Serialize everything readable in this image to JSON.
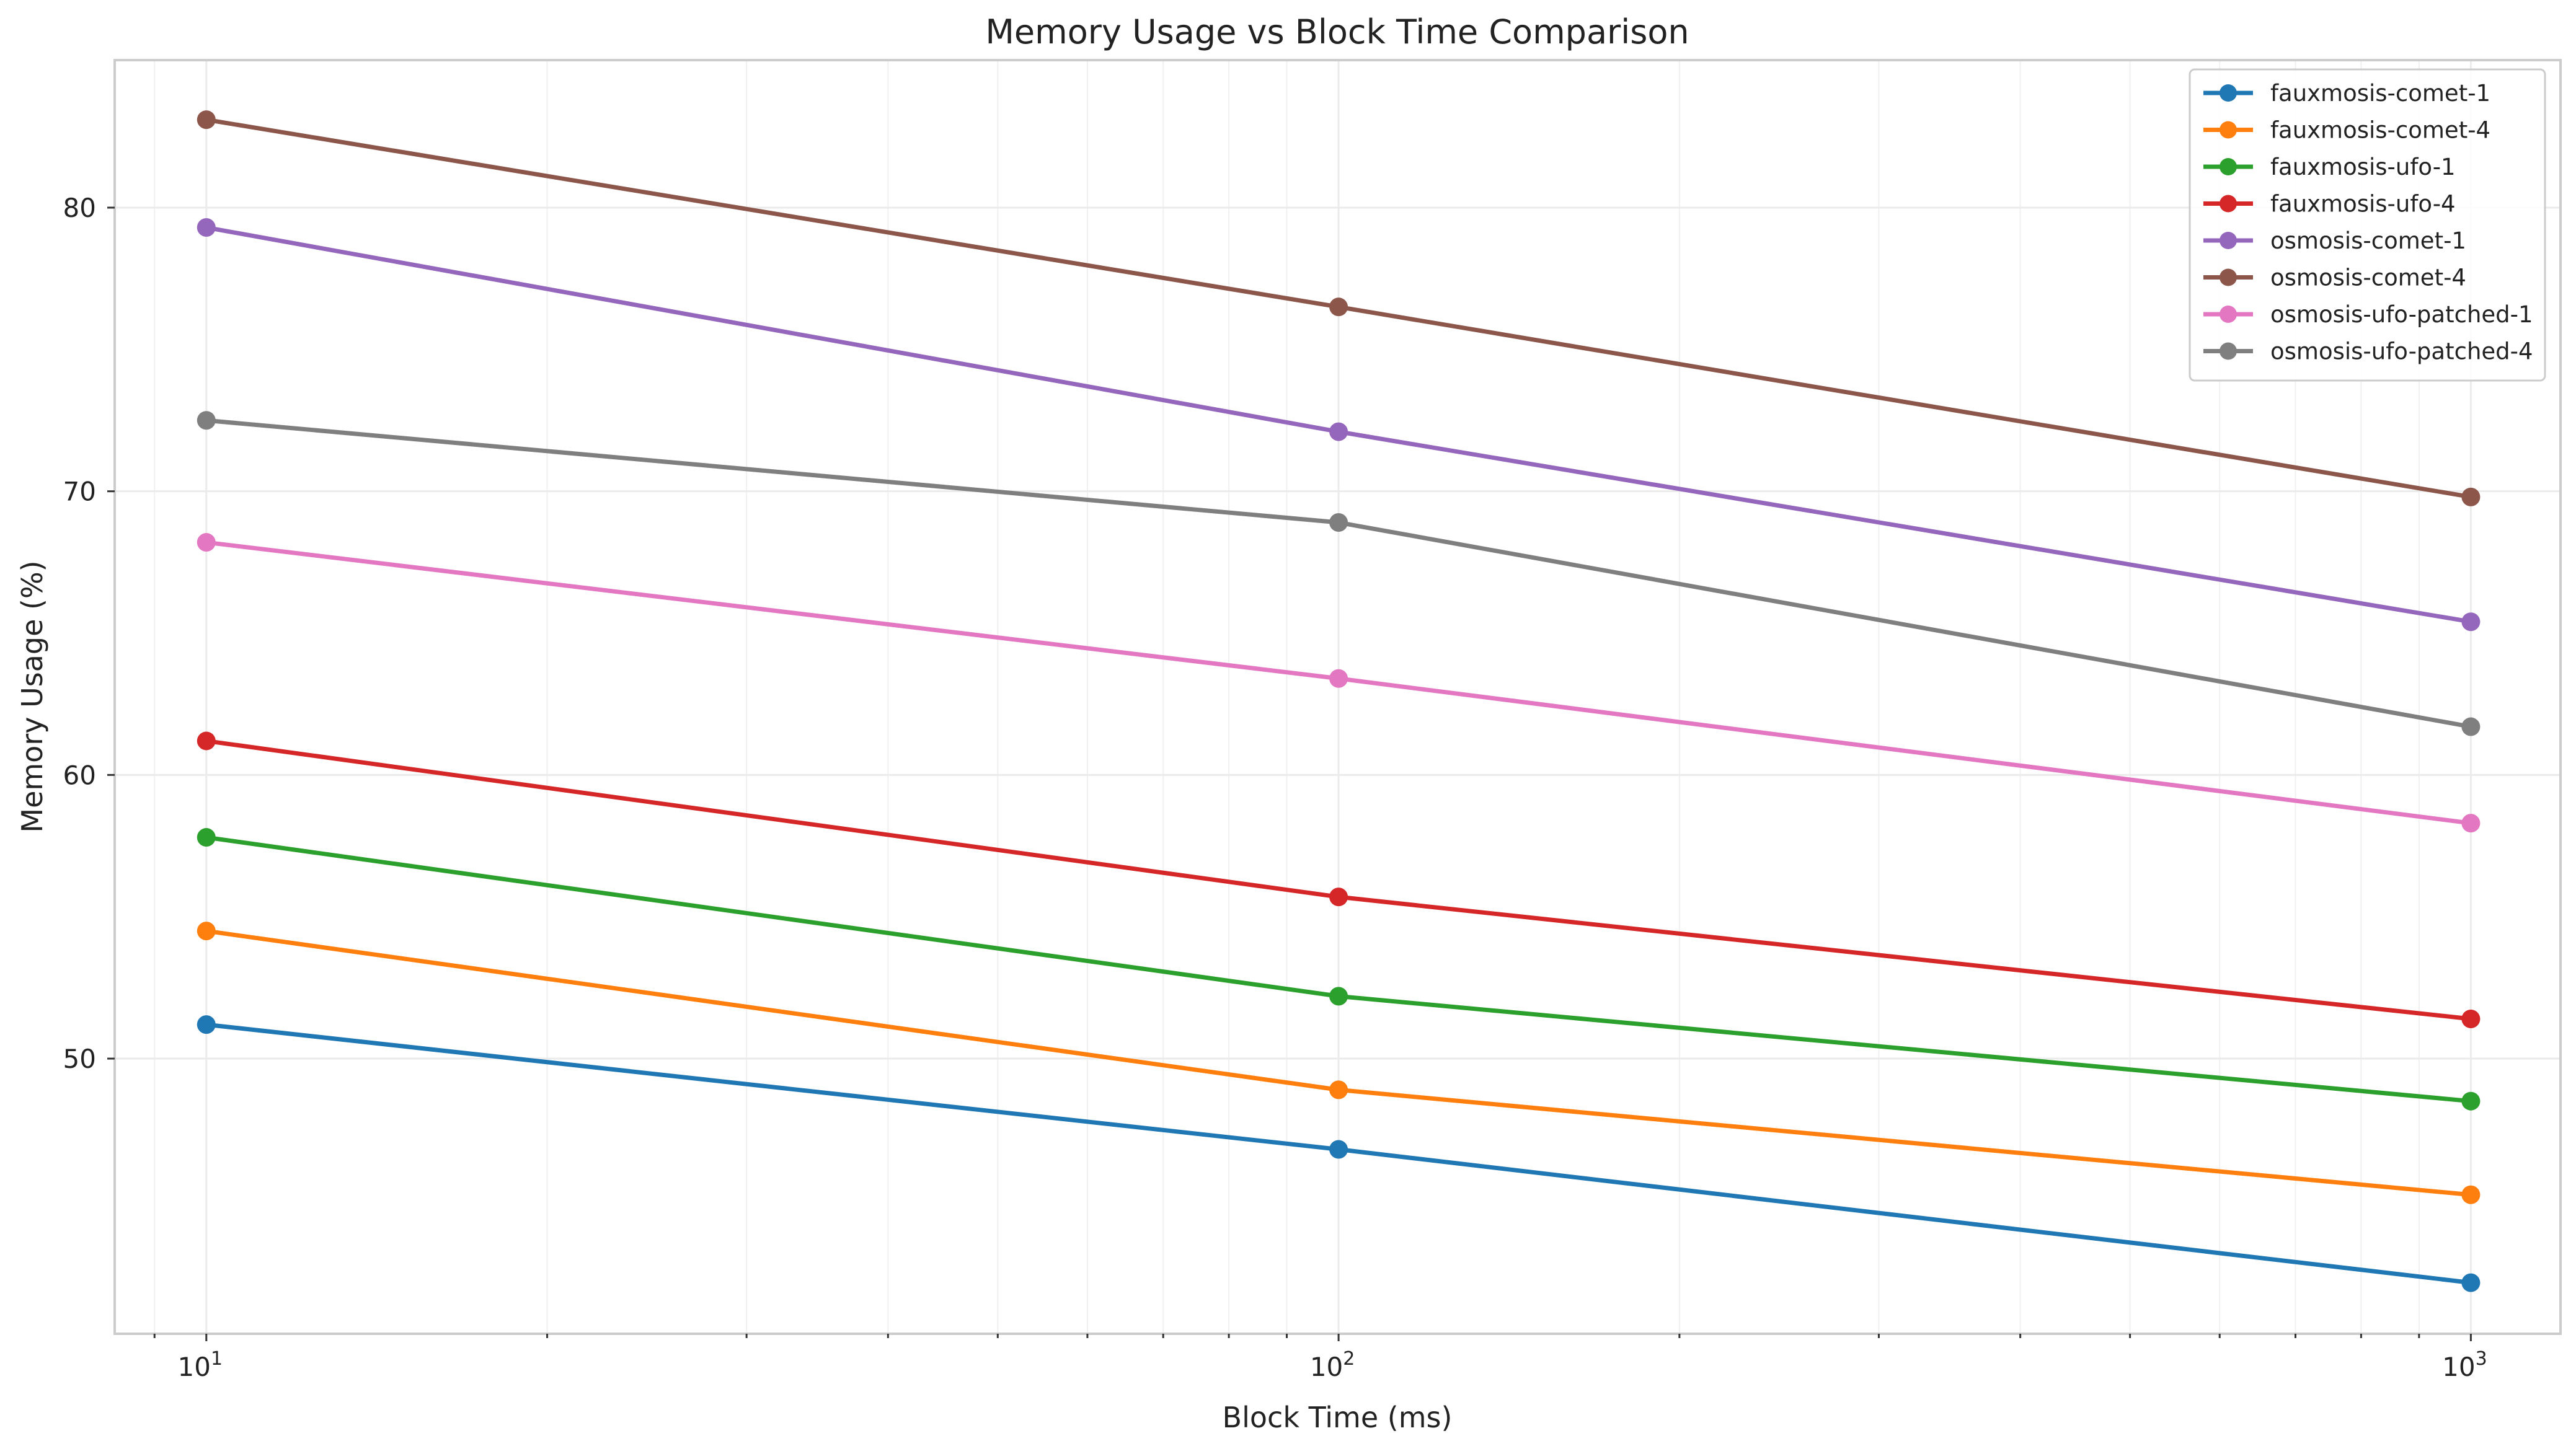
{
  "chart_data": {
    "type": "line",
    "title": "Memory Usage vs Block Time Comparison",
    "xlabel": "Block Time (ms)",
    "ylabel": "Memory Usage (%)",
    "x_scale": "log",
    "x": [
      10,
      100,
      1000
    ],
    "x_ticks": [
      {
        "value": 10,
        "base": "10",
        "exp": "1"
      },
      {
        "value": 100,
        "base": "10",
        "exp": "2"
      },
      {
        "value": 1000,
        "base": "10",
        "exp": "3"
      }
    ],
    "y_ticks": [
      50,
      60,
      70,
      80
    ],
    "xlim": [
      8.3,
      1200
    ],
    "ylim": [
      40.3,
      85.2
    ],
    "grid": true,
    "legend_position": "top-right",
    "series": [
      {
        "name": "fauxmosis-comet-1",
        "color": "#1f77b4",
        "values": [
          51.2,
          46.8,
          42.1
        ]
      },
      {
        "name": "fauxmosis-comet-4",
        "color": "#ff7f0e",
        "values": [
          54.5,
          48.9,
          45.2
        ]
      },
      {
        "name": "fauxmosis-ufo-1",
        "color": "#2ca02c",
        "values": [
          57.8,
          52.2,
          48.5
        ]
      },
      {
        "name": "fauxmosis-ufo-4",
        "color": "#d62728",
        "values": [
          61.2,
          55.7,
          51.4
        ]
      },
      {
        "name": "osmosis-comet-1",
        "color": "#9467bd",
        "values": [
          79.3,
          72.1,
          65.4
        ]
      },
      {
        "name": "osmosis-comet-4",
        "color": "#8c564b",
        "values": [
          83.1,
          76.5,
          69.8
        ]
      },
      {
        "name": "osmosis-ufo-patched-1",
        "color": "#e377c2",
        "values": [
          68.2,
          63.4,
          58.3
        ]
      },
      {
        "name": "osmosis-ufo-patched-4",
        "color": "#7f7f7f",
        "values": [
          72.5,
          68.9,
          61.7
        ]
      }
    ]
  }
}
